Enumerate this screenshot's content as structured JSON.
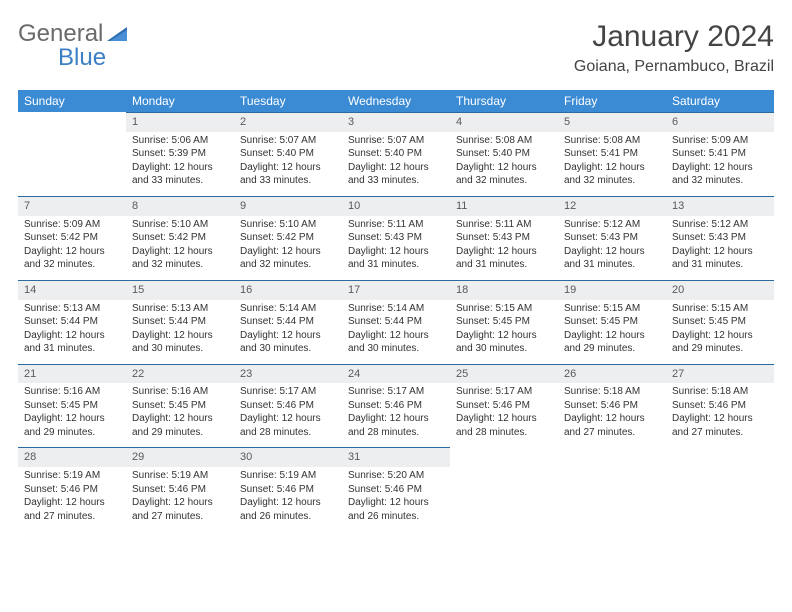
{
  "brand": {
    "part1": "General",
    "part2": "Blue"
  },
  "title": "January 2024",
  "location": "Goiana, Pernambuco, Brazil",
  "colors": {
    "header_bg": "#3b8bd4",
    "header_text": "#ffffff",
    "daynum_bg": "#eceef0",
    "daynum_border": "#2c6aa0",
    "body_text": "#333333",
    "logo_gray": "#6a6a6a",
    "logo_blue": "#3b7fc4"
  },
  "weekdays": [
    "Sunday",
    "Monday",
    "Tuesday",
    "Wednesday",
    "Thursday",
    "Friday",
    "Saturday"
  ],
  "weeks": [
    [
      null,
      {
        "n": "1",
        "sunrise": "Sunrise: 5:06 AM",
        "sunset": "Sunset: 5:39 PM",
        "day1": "Daylight: 12 hours",
        "day2": "and 33 minutes."
      },
      {
        "n": "2",
        "sunrise": "Sunrise: 5:07 AM",
        "sunset": "Sunset: 5:40 PM",
        "day1": "Daylight: 12 hours",
        "day2": "and 33 minutes."
      },
      {
        "n": "3",
        "sunrise": "Sunrise: 5:07 AM",
        "sunset": "Sunset: 5:40 PM",
        "day1": "Daylight: 12 hours",
        "day2": "and 33 minutes."
      },
      {
        "n": "4",
        "sunrise": "Sunrise: 5:08 AM",
        "sunset": "Sunset: 5:40 PM",
        "day1": "Daylight: 12 hours",
        "day2": "and 32 minutes."
      },
      {
        "n": "5",
        "sunrise": "Sunrise: 5:08 AM",
        "sunset": "Sunset: 5:41 PM",
        "day1": "Daylight: 12 hours",
        "day2": "and 32 minutes."
      },
      {
        "n": "6",
        "sunrise": "Sunrise: 5:09 AM",
        "sunset": "Sunset: 5:41 PM",
        "day1": "Daylight: 12 hours",
        "day2": "and 32 minutes."
      }
    ],
    [
      {
        "n": "7",
        "sunrise": "Sunrise: 5:09 AM",
        "sunset": "Sunset: 5:42 PM",
        "day1": "Daylight: 12 hours",
        "day2": "and 32 minutes."
      },
      {
        "n": "8",
        "sunrise": "Sunrise: 5:10 AM",
        "sunset": "Sunset: 5:42 PM",
        "day1": "Daylight: 12 hours",
        "day2": "and 32 minutes."
      },
      {
        "n": "9",
        "sunrise": "Sunrise: 5:10 AM",
        "sunset": "Sunset: 5:42 PM",
        "day1": "Daylight: 12 hours",
        "day2": "and 32 minutes."
      },
      {
        "n": "10",
        "sunrise": "Sunrise: 5:11 AM",
        "sunset": "Sunset: 5:43 PM",
        "day1": "Daylight: 12 hours",
        "day2": "and 31 minutes."
      },
      {
        "n": "11",
        "sunrise": "Sunrise: 5:11 AM",
        "sunset": "Sunset: 5:43 PM",
        "day1": "Daylight: 12 hours",
        "day2": "and 31 minutes."
      },
      {
        "n": "12",
        "sunrise": "Sunrise: 5:12 AM",
        "sunset": "Sunset: 5:43 PM",
        "day1": "Daylight: 12 hours",
        "day2": "and 31 minutes."
      },
      {
        "n": "13",
        "sunrise": "Sunrise: 5:12 AM",
        "sunset": "Sunset: 5:43 PM",
        "day1": "Daylight: 12 hours",
        "day2": "and 31 minutes."
      }
    ],
    [
      {
        "n": "14",
        "sunrise": "Sunrise: 5:13 AM",
        "sunset": "Sunset: 5:44 PM",
        "day1": "Daylight: 12 hours",
        "day2": "and 31 minutes."
      },
      {
        "n": "15",
        "sunrise": "Sunrise: 5:13 AM",
        "sunset": "Sunset: 5:44 PM",
        "day1": "Daylight: 12 hours",
        "day2": "and 30 minutes."
      },
      {
        "n": "16",
        "sunrise": "Sunrise: 5:14 AM",
        "sunset": "Sunset: 5:44 PM",
        "day1": "Daylight: 12 hours",
        "day2": "and 30 minutes."
      },
      {
        "n": "17",
        "sunrise": "Sunrise: 5:14 AM",
        "sunset": "Sunset: 5:44 PM",
        "day1": "Daylight: 12 hours",
        "day2": "and 30 minutes."
      },
      {
        "n": "18",
        "sunrise": "Sunrise: 5:15 AM",
        "sunset": "Sunset: 5:45 PM",
        "day1": "Daylight: 12 hours",
        "day2": "and 30 minutes."
      },
      {
        "n": "19",
        "sunrise": "Sunrise: 5:15 AM",
        "sunset": "Sunset: 5:45 PM",
        "day1": "Daylight: 12 hours",
        "day2": "and 29 minutes."
      },
      {
        "n": "20",
        "sunrise": "Sunrise: 5:15 AM",
        "sunset": "Sunset: 5:45 PM",
        "day1": "Daylight: 12 hours",
        "day2": "and 29 minutes."
      }
    ],
    [
      {
        "n": "21",
        "sunrise": "Sunrise: 5:16 AM",
        "sunset": "Sunset: 5:45 PM",
        "day1": "Daylight: 12 hours",
        "day2": "and 29 minutes."
      },
      {
        "n": "22",
        "sunrise": "Sunrise: 5:16 AM",
        "sunset": "Sunset: 5:45 PM",
        "day1": "Daylight: 12 hours",
        "day2": "and 29 minutes."
      },
      {
        "n": "23",
        "sunrise": "Sunrise: 5:17 AM",
        "sunset": "Sunset: 5:46 PM",
        "day1": "Daylight: 12 hours",
        "day2": "and 28 minutes."
      },
      {
        "n": "24",
        "sunrise": "Sunrise: 5:17 AM",
        "sunset": "Sunset: 5:46 PM",
        "day1": "Daylight: 12 hours",
        "day2": "and 28 minutes."
      },
      {
        "n": "25",
        "sunrise": "Sunrise: 5:17 AM",
        "sunset": "Sunset: 5:46 PM",
        "day1": "Daylight: 12 hours",
        "day2": "and 28 minutes."
      },
      {
        "n": "26",
        "sunrise": "Sunrise: 5:18 AM",
        "sunset": "Sunset: 5:46 PM",
        "day1": "Daylight: 12 hours",
        "day2": "and 27 minutes."
      },
      {
        "n": "27",
        "sunrise": "Sunrise: 5:18 AM",
        "sunset": "Sunset: 5:46 PM",
        "day1": "Daylight: 12 hours",
        "day2": "and 27 minutes."
      }
    ],
    [
      {
        "n": "28",
        "sunrise": "Sunrise: 5:19 AM",
        "sunset": "Sunset: 5:46 PM",
        "day1": "Daylight: 12 hours",
        "day2": "and 27 minutes."
      },
      {
        "n": "29",
        "sunrise": "Sunrise: 5:19 AM",
        "sunset": "Sunset: 5:46 PM",
        "day1": "Daylight: 12 hours",
        "day2": "and 27 minutes."
      },
      {
        "n": "30",
        "sunrise": "Sunrise: 5:19 AM",
        "sunset": "Sunset: 5:46 PM",
        "day1": "Daylight: 12 hours",
        "day2": "and 26 minutes."
      },
      {
        "n": "31",
        "sunrise": "Sunrise: 5:20 AM",
        "sunset": "Sunset: 5:46 PM",
        "day1": "Daylight: 12 hours",
        "day2": "and 26 minutes."
      },
      null,
      null,
      null
    ]
  ]
}
